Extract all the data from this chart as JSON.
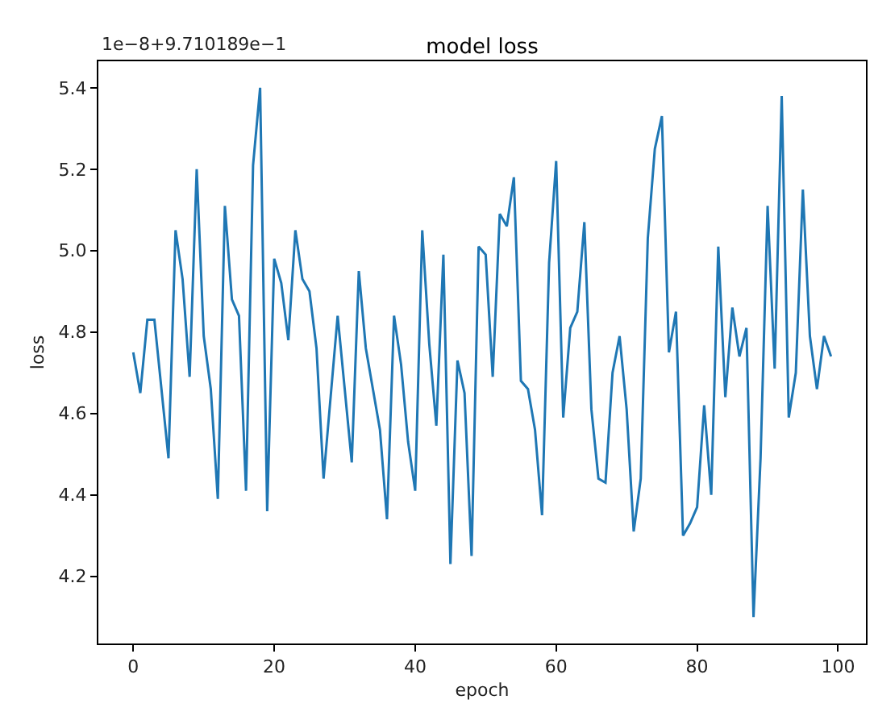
{
  "chart_data": {
    "type": "line",
    "title": "model loss",
    "xlabel": "epoch",
    "ylabel": "loss",
    "annotations": [
      "1e−8+9.710189e−1"
    ],
    "x": [
      0,
      1,
      2,
      3,
      4,
      5,
      6,
      7,
      8,
      9,
      10,
      11,
      12,
      13,
      14,
      15,
      16,
      17,
      18,
      19,
      20,
      21,
      22,
      23,
      24,
      25,
      26,
      27,
      28,
      29,
      30,
      31,
      32,
      33,
      34,
      35,
      36,
      37,
      38,
      39,
      40,
      41,
      42,
      43,
      44,
      45,
      46,
      47,
      48,
      49,
      50,
      51,
      52,
      53,
      54,
      55,
      56,
      57,
      58,
      59,
      60,
      61,
      62,
      63,
      64,
      65,
      66,
      67,
      68,
      69,
      70,
      71,
      72,
      73,
      74,
      75,
      76,
      77,
      78,
      79,
      80,
      81,
      82,
      83,
      84,
      85,
      86,
      87,
      88,
      89,
      90,
      91,
      92,
      93,
      94,
      95,
      96,
      97,
      98,
      99
    ],
    "series": [
      {
        "color": "#1f77b4",
        "values": [
          4.75,
          4.65,
          4.83,
          4.83,
          4.66,
          4.49,
          5.05,
          4.93,
          4.69,
          5.2,
          4.79,
          4.66,
          4.39,
          5.11,
          4.88,
          4.84,
          4.41,
          5.21,
          5.4,
          4.36,
          4.98,
          4.92,
          4.78,
          5.05,
          4.93,
          4.9,
          4.76,
          4.44,
          4.64,
          4.84,
          4.66,
          4.48,
          4.95,
          4.76,
          4.66,
          4.56,
          4.34,
          4.84,
          4.72,
          4.53,
          4.41,
          5.05,
          4.77,
          4.57,
          4.99,
          4.23,
          4.73,
          4.65,
          4.25,
          5.01,
          4.99,
          4.69,
          5.09,
          5.06,
          5.18,
          4.68,
          4.66,
          4.56,
          4.35,
          4.97,
          5.22,
          4.59,
          4.81,
          4.85,
          5.07,
          4.61,
          4.44,
          4.43,
          4.7,
          4.79,
          4.61,
          4.31,
          4.44,
          5.03,
          5.25,
          5.33,
          4.75,
          4.85,
          4.3,
          4.33,
          4.37,
          4.62,
          4.4,
          5.01,
          4.64,
          4.86,
          4.74,
          4.81,
          4.1,
          4.49,
          5.11,
          4.71,
          5.38,
          4.59,
          4.7,
          5.15,
          4.79,
          4.66,
          4.79,
          4.74
        ]
      }
    ],
    "xlim": [
      -4.95,
      103.95
    ],
    "ylim": [
      4.035,
      5.465
    ],
    "xticks": [
      0,
      20,
      40,
      60,
      80,
      100
    ],
    "yticks": [
      4.2,
      4.4,
      4.6,
      4.8,
      {
        "value": 5.0,
        "label": "5.0"
      },
      5.2,
      5.4
    ],
    "marker": "none",
    "line_style": "solid"
  }
}
